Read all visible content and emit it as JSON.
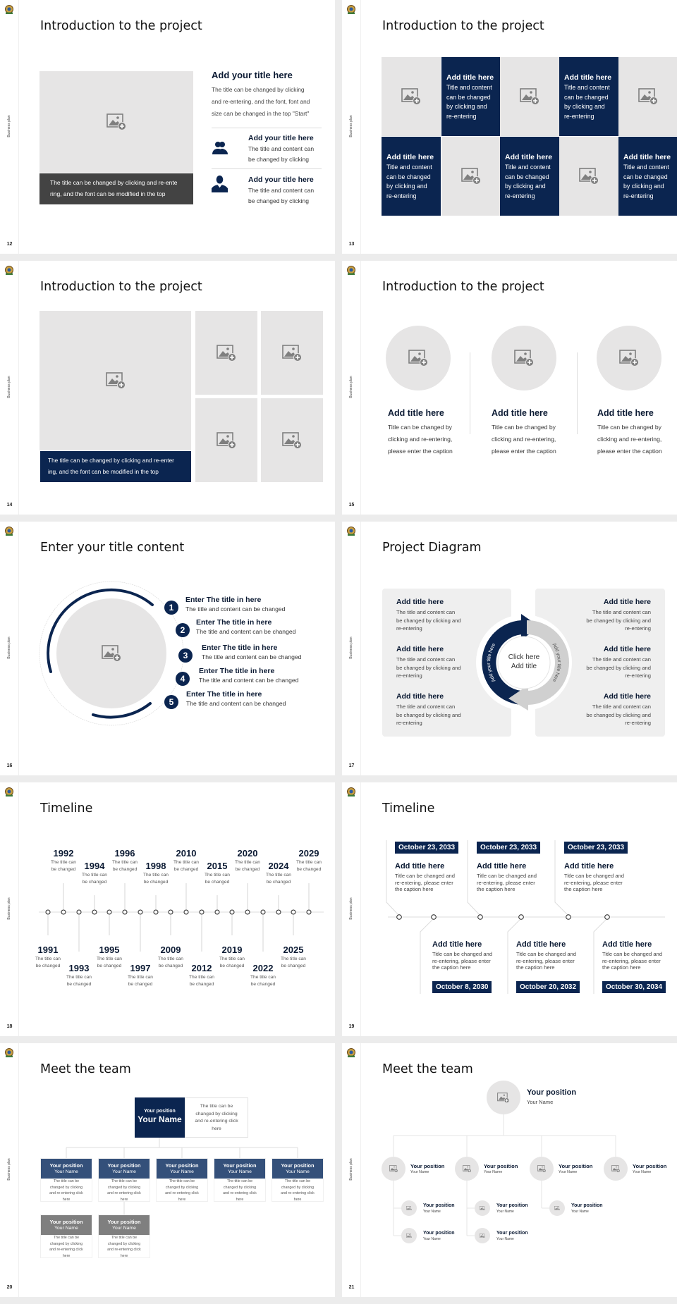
{
  "common": {
    "side_label": "Business plan",
    "logo": "company-crest-logo"
  },
  "colors": {
    "navy": "#0b2550",
    "placeholder_gray": "#e6e5e5",
    "caption_dark": "#434343",
    "slate_blue": "#34507a",
    "header_gray": "#7f7f7f",
    "panel_gray": "#efefef"
  },
  "slides": [
    {
      "page": "12",
      "title": "Introduction to the project",
      "caption": [
        "The title can be changed by clicking and re-ente",
        "ring, and the font can be modified in the top"
      ],
      "main_title": "Add your title here",
      "main_body": [
        "The title can be changed by clicking",
        "and re-entering, and the font, font and",
        "size can be changed in the top \"Start\""
      ],
      "items": [
        {
          "icon": "group-users-icon",
          "title": "Add your title here",
          "body": [
            "The title and content can",
            "be changed by clicking"
          ]
        },
        {
          "icon": "user-icon",
          "title": "Add your title here",
          "body": [
            "The title and content can",
            "be changed by clicking"
          ]
        }
      ]
    },
    {
      "page": "13",
      "title": "Introduction to the project",
      "cards": [
        {
          "title": "Add title here",
          "body": [
            "Title and content",
            "can be changed",
            "by clicking and",
            "re-entering"
          ]
        },
        {
          "title": "Add title here",
          "body": [
            "Title and content",
            "can be changed",
            "by clicking and",
            "re-entering"
          ]
        },
        {
          "title": "Add title here",
          "body": [
            "Title and content",
            "can be changed",
            "by clicking and",
            "re-entering"
          ]
        },
        {
          "title": "Add title here",
          "body": [
            "Title and content",
            "can be changed",
            "by clicking and",
            "re-entering"
          ]
        },
        {
          "title": "Add title here",
          "body": [
            "Title and content",
            "can be changed",
            "by clicking and",
            "re-entering"
          ]
        }
      ]
    },
    {
      "page": "14",
      "title": "Introduction to the project",
      "caption": [
        "The title can be changed by clicking and re-enter",
        "ing, and the font can be modified in the top"
      ]
    },
    {
      "page": "15",
      "title": "Introduction to the project",
      "columns": [
        {
          "title": "Add title here",
          "body": [
            "Title can be changed by",
            "clicking and re-entering,",
            "please enter the caption"
          ]
        },
        {
          "title": "Add title here",
          "body": [
            "Title can be changed by",
            "clicking and re-entering,",
            "please enter the caption"
          ]
        },
        {
          "title": "Add title here",
          "body": [
            "Title can be changed by",
            "clicking and re-entering,",
            "please enter the caption"
          ]
        }
      ]
    },
    {
      "page": "16",
      "title": "Enter your title content",
      "items": [
        {
          "num": "1",
          "title": "Enter The title in here",
          "body": "The title and content can be changed"
        },
        {
          "num": "2",
          "title": "Enter The title in here",
          "body": "The title and content can be changed"
        },
        {
          "num": "3",
          "title": "Enter The title in here",
          "body": "The title and content can be changed"
        },
        {
          "num": "4",
          "title": "Enter The title in here",
          "body": "The title and content can be changed"
        },
        {
          "num": "5",
          "title": "Enter The title in here",
          "body": "The title and content can be changed"
        }
      ]
    },
    {
      "page": "17",
      "title": "Project Diagram",
      "left": [
        {
          "title": "Add title here",
          "body": [
            "The title and content can",
            "be changed by clicking and",
            "re-entering"
          ]
        },
        {
          "title": "Add title here",
          "body": [
            "The title and content can",
            "be changed by clicking and",
            "re-entering"
          ]
        },
        {
          "title": "Add title here",
          "body": [
            "The title and content can",
            "be changed by clicking and",
            "re-entering"
          ]
        }
      ],
      "right": [
        {
          "title": "Add title here",
          "body": [
            "The title and content can",
            "be changed by clicking and",
            "re-entering"
          ]
        },
        {
          "title": "Add title here",
          "body": [
            "The title and content can",
            "be changed by clicking and",
            "re-entering"
          ]
        },
        {
          "title": "Add title here",
          "body": [
            "The title and content can",
            "be changed by clicking and",
            "re-entering"
          ]
        }
      ],
      "center": [
        "Click here",
        "Add title"
      ],
      "arc_left": "Add your title here",
      "arc_right": "Add your title here"
    },
    {
      "page": "18",
      "title": "Timeline",
      "events": [
        {
          "year": "1991",
          "text": [
            "The title can",
            "be changed"
          ]
        },
        {
          "year": "1992",
          "text": [
            "The title can",
            "be changed"
          ]
        },
        {
          "year": "1993",
          "text": [
            "The title can",
            "be changed"
          ]
        },
        {
          "year": "1994",
          "text": [
            "The title can",
            "be changed"
          ]
        },
        {
          "year": "1995",
          "text": [
            "The title can",
            "be changed"
          ]
        },
        {
          "year": "1996",
          "text": [
            "The title can",
            "be changed"
          ]
        },
        {
          "year": "1997",
          "text": [
            "The title can",
            "be changed"
          ]
        },
        {
          "year": "1998",
          "text": [
            "The title can",
            "be changed"
          ]
        },
        {
          "year": "2009",
          "text": [
            "The title can",
            "be changed"
          ]
        },
        {
          "year": "2010",
          "text": [
            "The title can",
            "be changed"
          ]
        },
        {
          "year": "2012",
          "text": [
            "The title can",
            "be changed"
          ]
        },
        {
          "year": "2015",
          "text": [
            "The title can",
            "be changed"
          ]
        },
        {
          "year": "2019",
          "text": [
            "The title can",
            "be changed"
          ]
        },
        {
          "year": "2020",
          "text": [
            "The title can",
            "be changed"
          ]
        },
        {
          "year": "2022",
          "text": [
            "The title can",
            "be changed"
          ]
        },
        {
          "year": "2024",
          "text": [
            "The title can",
            "be changed"
          ]
        },
        {
          "year": "2025",
          "text": [
            "The title can",
            "be changed"
          ]
        },
        {
          "year": "2029",
          "text": [
            "The title can",
            "be changed"
          ]
        }
      ]
    },
    {
      "page": "19",
      "title": "Timeline",
      "top": [
        {
          "date": "October 23, 2033",
          "title": "Add title here",
          "body": [
            "Title can be changed and",
            "re-entering, please enter",
            "the caption here"
          ]
        },
        {
          "date": "October 23, 2033",
          "title": "Add title here",
          "body": [
            "Title can be changed and",
            "re-entering, please enter",
            "the caption here"
          ]
        },
        {
          "date": "October 23, 2033",
          "title": "Add title here",
          "body": [
            "Title can be changed and",
            "re-entering, please enter",
            "the caption here"
          ]
        }
      ],
      "bottom": [
        {
          "date": "October 8, 2030",
          "title": "Add title here",
          "body": [
            "Title can be changed and",
            "re-entering, please enter",
            "the caption here"
          ]
        },
        {
          "date": "October 20, 2032",
          "title": "Add title here",
          "body": [
            "Title can be changed and",
            "re-entering, please enter",
            "the caption here"
          ]
        },
        {
          "date": "October 30, 2034",
          "title": "Add title here",
          "body": [
            "Title can be changed and",
            "re-entering, please enter",
            "the caption here"
          ]
        }
      ]
    },
    {
      "page": "20",
      "title": "Meet the team",
      "lead": {
        "position": "Your position",
        "name": "Your Name",
        "desc": [
          "The title can be",
          "changed by clicking",
          "and re-entering click",
          "here"
        ]
      },
      "row1": [
        {
          "position": "Your position",
          "name": "Your Name",
          "desc": [
            "The title can be",
            "changed by clicking",
            "and re-entering click",
            "here"
          ]
        },
        {
          "position": "Your position",
          "name": "Your Name",
          "desc": [
            "The title can be",
            "changed by clicking",
            "and re-entering click",
            "here"
          ]
        },
        {
          "position": "Your position",
          "name": "Your Name",
          "desc": [
            "The title can be",
            "changed by clicking",
            "and re-entering click",
            "here"
          ]
        },
        {
          "position": "Your position",
          "name": "Your Name",
          "desc": [
            "The title can be",
            "changed by clicking",
            "and re-entering click",
            "here"
          ]
        },
        {
          "position": "Your position",
          "name": "Your Name",
          "desc": [
            "The title can be",
            "changed by clicking",
            "and re-entering click",
            "here"
          ]
        }
      ],
      "row2": [
        {
          "position": "Your position",
          "name": "Your Name",
          "desc": [
            "The title can be",
            "changed by clicking",
            "and re-entering click",
            "here"
          ]
        },
        {
          "position": "Your position",
          "name": "Your Name",
          "desc": [
            "The title can be",
            "changed by clicking",
            "and re-entering click",
            "here"
          ]
        }
      ]
    },
    {
      "page": "21",
      "title": "Meet the team",
      "lead": {
        "position": "Your position",
        "name": "Your Name"
      },
      "level1": [
        {
          "position": "Your position",
          "name": "Your Name"
        },
        {
          "position": "Your position",
          "name": "Your Name"
        },
        {
          "position": "Your position",
          "name": "Your Name"
        },
        {
          "position": "Your position",
          "name": "Your Name"
        }
      ],
      "level2": [
        [
          {
            "position": "Your position",
            "name": "Your Name"
          },
          {
            "position": "Your position",
            "name": "Your Name"
          }
        ],
        [
          {
            "position": "Your position",
            "name": "Your Name"
          },
          {
            "position": "Your position",
            "name": "Your Name"
          }
        ],
        [
          {
            "position": "Your position",
            "name": "Your Name"
          }
        ]
      ]
    }
  ]
}
